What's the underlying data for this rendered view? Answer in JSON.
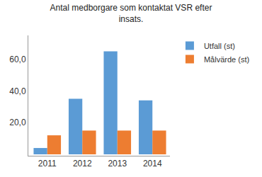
{
  "chart_data": {
    "type": "bar",
    "title": "Antal medborgare som kontaktat VSR efter insats.",
    "categories": [
      "2011",
      "2012",
      "2013",
      "2014"
    ],
    "series": [
      {
        "name": "Utfall (st)",
        "color": "#5b9bd5",
        "values": [
          4,
          35,
          65,
          34
        ]
      },
      {
        "name": "Målvärde (st)",
        "color": "#ed7d31",
        "values": [
          12,
          15,
          15,
          15
        ]
      }
    ],
    "ylim": [
      0,
      75
    ],
    "yticks": [
      {
        "value": 20,
        "label": "20,0"
      },
      {
        "value": 40,
        "label": "40,0"
      },
      {
        "value": 60,
        "label": "60,0"
      }
    ],
    "grid": false,
    "legend": "top right"
  }
}
